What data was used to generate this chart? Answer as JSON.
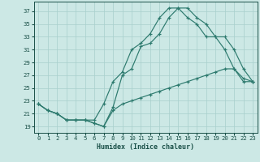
{
  "xlabel": "Humidex (Indice chaleur)",
  "bg_color": "#cce8e5",
  "line_color": "#2d7a6e",
  "grid_color": "#a8cfcc",
  "xlim": [
    -0.5,
    23.5
  ],
  "ylim": [
    18.0,
    38.5
  ],
  "yticks": [
    19,
    21,
    23,
    25,
    27,
    29,
    31,
    33,
    35,
    37
  ],
  "xticks": [
    0,
    1,
    2,
    3,
    4,
    5,
    6,
    7,
    8,
    9,
    10,
    11,
    12,
    13,
    14,
    15,
    16,
    17,
    18,
    19,
    20,
    21,
    22,
    23
  ],
  "line1_x": [
    0,
    1,
    2,
    3,
    4,
    5,
    6,
    7,
    8,
    9,
    10,
    11,
    12,
    13,
    14,
    15,
    16,
    17,
    18,
    19,
    20,
    21,
    22,
    23
  ],
  "line1_y": [
    22.5,
    21.5,
    21.0,
    20.0,
    20.0,
    20.0,
    19.5,
    19.0,
    22.0,
    27.0,
    28.0,
    31.5,
    32.0,
    33.5,
    36.0,
    37.5,
    37.5,
    36.0,
    35.0,
    33.0,
    33.0,
    31.0,
    28.0,
    26.0
  ],
  "line2_x": [
    0,
    1,
    2,
    3,
    4,
    5,
    6,
    7,
    8,
    9,
    10,
    11,
    12,
    13,
    14,
    15,
    16,
    17,
    18,
    19,
    20,
    21,
    22,
    23
  ],
  "line2_y": [
    22.5,
    21.5,
    21.0,
    20.0,
    20.0,
    20.0,
    20.0,
    22.5,
    26.0,
    27.5,
    31.0,
    32.0,
    33.5,
    36.0,
    37.5,
    37.5,
    36.0,
    35.0,
    33.0,
    33.0,
    31.0,
    28.0,
    26.0,
    26.0
  ],
  "line3_x": [
    0,
    1,
    2,
    3,
    4,
    5,
    6,
    7,
    8,
    9,
    10,
    11,
    12,
    13,
    14,
    15,
    16,
    17,
    18,
    19,
    20,
    21,
    22,
    23
  ],
  "line3_y": [
    22.5,
    21.5,
    21.0,
    20.0,
    20.0,
    20.0,
    19.5,
    19.0,
    21.5,
    22.5,
    23.0,
    23.5,
    24.0,
    24.5,
    25.0,
    25.5,
    26.0,
    26.5,
    27.0,
    27.5,
    28.0,
    28.0,
    26.5,
    26.0
  ]
}
